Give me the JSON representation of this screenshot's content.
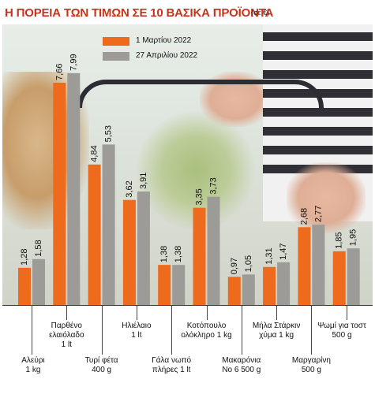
{
  "chart_data": {
    "type": "bar",
    "title": "Η ΠΟΡΕΙΑ ΤΩΝ ΤΙΜΩΝ ΣΕ 10 ΒΑΣΙΚΑ ΠΡΟΪΟΝΤΑ",
    "subtitle": "(σε €)",
    "categories": [
      "Αλεύρι\n1 kg",
      "Παρθένο\nελαιόλαδο\n1 lt",
      "Τυρί φέτα\n400 g",
      "Ηλιέλαιο\n1 lt",
      "Γάλα νωπό\nπλήρες 1 lt",
      "Κοτόπουλο\nολόκληρο 1 kg",
      "Μακαρόνια\nΝο 6 500 g",
      "Μήλα Στάρκιν\nχύμα 1 kg",
      "Μαργαρίνη\n500 g",
      "Ψωμί για τοστ\n500 g"
    ],
    "series": [
      {
        "name": "1 Μαρτίου 2022",
        "color": "#ee6a1c",
        "values": [
          1.28,
          7.66,
          4.84,
          3.62,
          1.38,
          3.35,
          0.97,
          1.31,
          2.68,
          1.85
        ]
      },
      {
        "name": "27 Απριλίου 2022",
        "color": "#9c9b97",
        "values": [
          1.58,
          7.99,
          5.53,
          3.91,
          1.38,
          3.73,
          1.05,
          1.47,
          2.77,
          1.95
        ]
      }
    ],
    "value_labels": [
      [
        "1,28",
        "7,66",
        "4,84",
        "3,62",
        "1,38",
        "3,35",
        "0,97",
        "1,31",
        "2,68",
        "1,85"
      ],
      [
        "1,58",
        "7,99",
        "5,53",
        "3,91",
        "1,38",
        "3,73",
        "1,05",
        "1,47",
        "2,77",
        "1,95"
      ]
    ],
    "ylim": [
      0,
      8.8
    ],
    "legend_position": "top-center",
    "grid": false
  }
}
